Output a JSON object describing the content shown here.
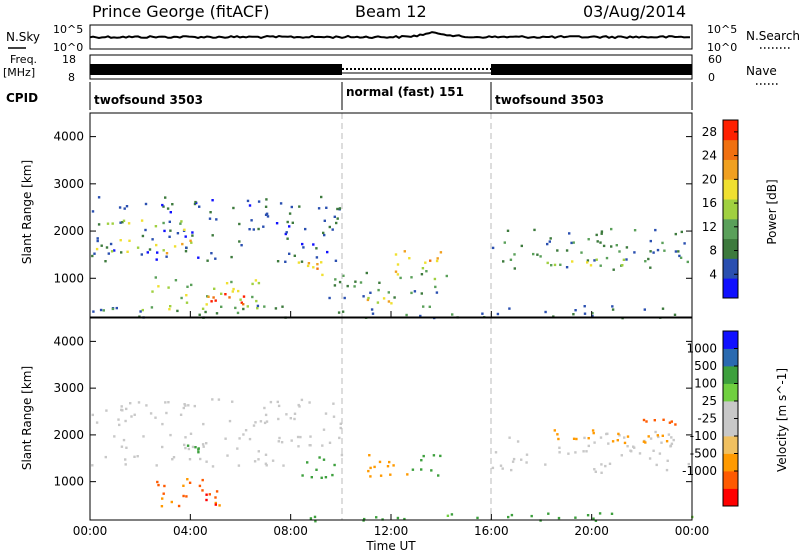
{
  "header": {
    "station": "Prince George (fitACF)",
    "beam": "Beam 12",
    "date": "03/Aug/2014"
  },
  "noise_panel": {
    "left_label": "N.Sky",
    "right_label": "N.Search",
    "left_ticks": [
      "10^5",
      "10^0"
    ],
    "right_ticks": [
      "10^5",
      "10^0"
    ]
  },
  "freq_panel": {
    "left_label_line1": "Freq.",
    "left_label_line2": "[MHz]",
    "left_ticks": [
      "18",
      "8"
    ],
    "right_label": "Nave",
    "right_ticks": [
      "60",
      "0"
    ]
  },
  "cpid": {
    "label": "CPID",
    "segments": [
      {
        "name": "twofsound 3503",
        "start_hour": 0,
        "end_hour": 10
      },
      {
        "name": "normal (fast) 151",
        "start_hour": 10,
        "end_hour": 16
      },
      {
        "name": "twofsound 3503",
        "start_hour": 16,
        "end_hour": 24
      }
    ]
  },
  "colors": {
    "power": [
      "#1010ff",
      "#2a4fb0",
      "#3d7a3d",
      "#5aa05a",
      "#a0d040",
      "#f0e030",
      "#f0a020",
      "#f07010",
      "#ff2000"
    ],
    "velocity": [
      "#ff0000",
      "#ff5a00",
      "#ff9a00",
      "#f0c060",
      "#c8c8c8",
      "#c8c8c8",
      "#70d040",
      "#3da03d",
      "#2a6ab0",
      "#1010ff"
    ]
  },
  "chart_data": [
    {
      "type": "heatmap",
      "name": "power",
      "ylabel": "Slant Range [km]",
      "xlim_hours": [
        0,
        24
      ],
      "ylim": [
        180,
        4500
      ],
      "yticks": [
        "1000",
        "2000",
        "3000",
        "4000"
      ],
      "colorbar_label": "Power [dB]",
      "colorbar_ticks": [
        "4",
        "8",
        "12",
        "16",
        "20",
        "24",
        "28"
      ],
      "colorbar_range": [
        0,
        30
      ],
      "bands": [
        {
          "t0": 0,
          "t1": 10,
          "r0": 1350,
          "r1": 2800,
          "db": 6
        },
        {
          "t0": 0.2,
          "t1": 4,
          "r0": 1550,
          "r1": 1850,
          "db": 18
        },
        {
          "t0": 0.2,
          "t1": 4,
          "r0": 2050,
          "r1": 2250,
          "db": 14
        },
        {
          "t0": 2,
          "t1": 7,
          "r0": 350,
          "r1": 1100,
          "db": 14
        },
        {
          "t0": 4.5,
          "t1": 6.2,
          "r0": 450,
          "r1": 800,
          "db": 27
        },
        {
          "t0": 8.2,
          "t1": 9.6,
          "r0": 1050,
          "r1": 1400,
          "db": 23
        },
        {
          "t0": 9.5,
          "t1": 14.5,
          "r0": 600,
          "r1": 1200,
          "db": 9
        },
        {
          "t0": 11,
          "t1": 12.5,
          "r0": 450,
          "r1": 650,
          "db": 18
        },
        {
          "t0": 12,
          "t1": 14,
          "r0": 1000,
          "r1": 1600,
          "db": 20
        },
        {
          "t0": 16,
          "t1": 24,
          "r0": 1200,
          "r1": 2100,
          "db": 9
        },
        {
          "t0": 18,
          "t1": 22,
          "r0": 1200,
          "r1": 1450,
          "db": 14
        },
        {
          "t0": 0,
          "t1": 24,
          "r0": 180,
          "r1": 450,
          "db": 8
        }
      ]
    },
    {
      "type": "heatmap",
      "name": "velocity",
      "xlabel": "Time UT",
      "ylabel": "Slant Range [km]",
      "xlim_hours": [
        0,
        24
      ],
      "ylim": [
        180,
        4500
      ],
      "xticks": [
        "00:00",
        "04:00",
        "08:00",
        "12:00",
        "16:00",
        "20:00",
        "00:00"
      ],
      "yticks": [
        "1000",
        "2000",
        "3000",
        "4000"
      ],
      "colorbar_label": "Velocity [m s^-1]",
      "colorbar_ticks": [
        "1000",
        "500",
        "100",
        "25",
        "-25",
        "-100",
        "-500",
        "-1000"
      ],
      "bands": [
        {
          "t0": 0,
          "t1": 10,
          "r0": 1350,
          "r1": 2800,
          "v": 0
        },
        {
          "t0": 2.5,
          "t1": 5.5,
          "r0": 500,
          "r1": 1100,
          "v": -300
        },
        {
          "t0": 4.2,
          "t1": 5,
          "r0": 500,
          "r1": 850,
          "v": -700
        },
        {
          "t0": 3.8,
          "t1": 4.3,
          "r0": 1550,
          "r1": 1850,
          "v": 120
        },
        {
          "t0": 8.2,
          "t1": 9.8,
          "r0": 1100,
          "r1": 1600,
          "v": 150
        },
        {
          "t0": 11,
          "t1": 12.8,
          "r0": 1050,
          "r1": 1600,
          "v": -120
        },
        {
          "t0": 12.8,
          "t1": 14,
          "r0": 1150,
          "r1": 1600,
          "v": 80
        },
        {
          "t0": 16,
          "t1": 24,
          "r0": 1200,
          "r1": 2100,
          "v": 0
        },
        {
          "t0": 18,
          "t1": 23.5,
          "r0": 1850,
          "r1": 2200,
          "v": -150
        },
        {
          "t0": 22,
          "t1": 23.5,
          "r0": 2100,
          "r1": 2350,
          "v": -450
        },
        {
          "t0": 8,
          "t1": 24,
          "r0": 180,
          "r1": 350,
          "v": 80
        }
      ]
    }
  ]
}
